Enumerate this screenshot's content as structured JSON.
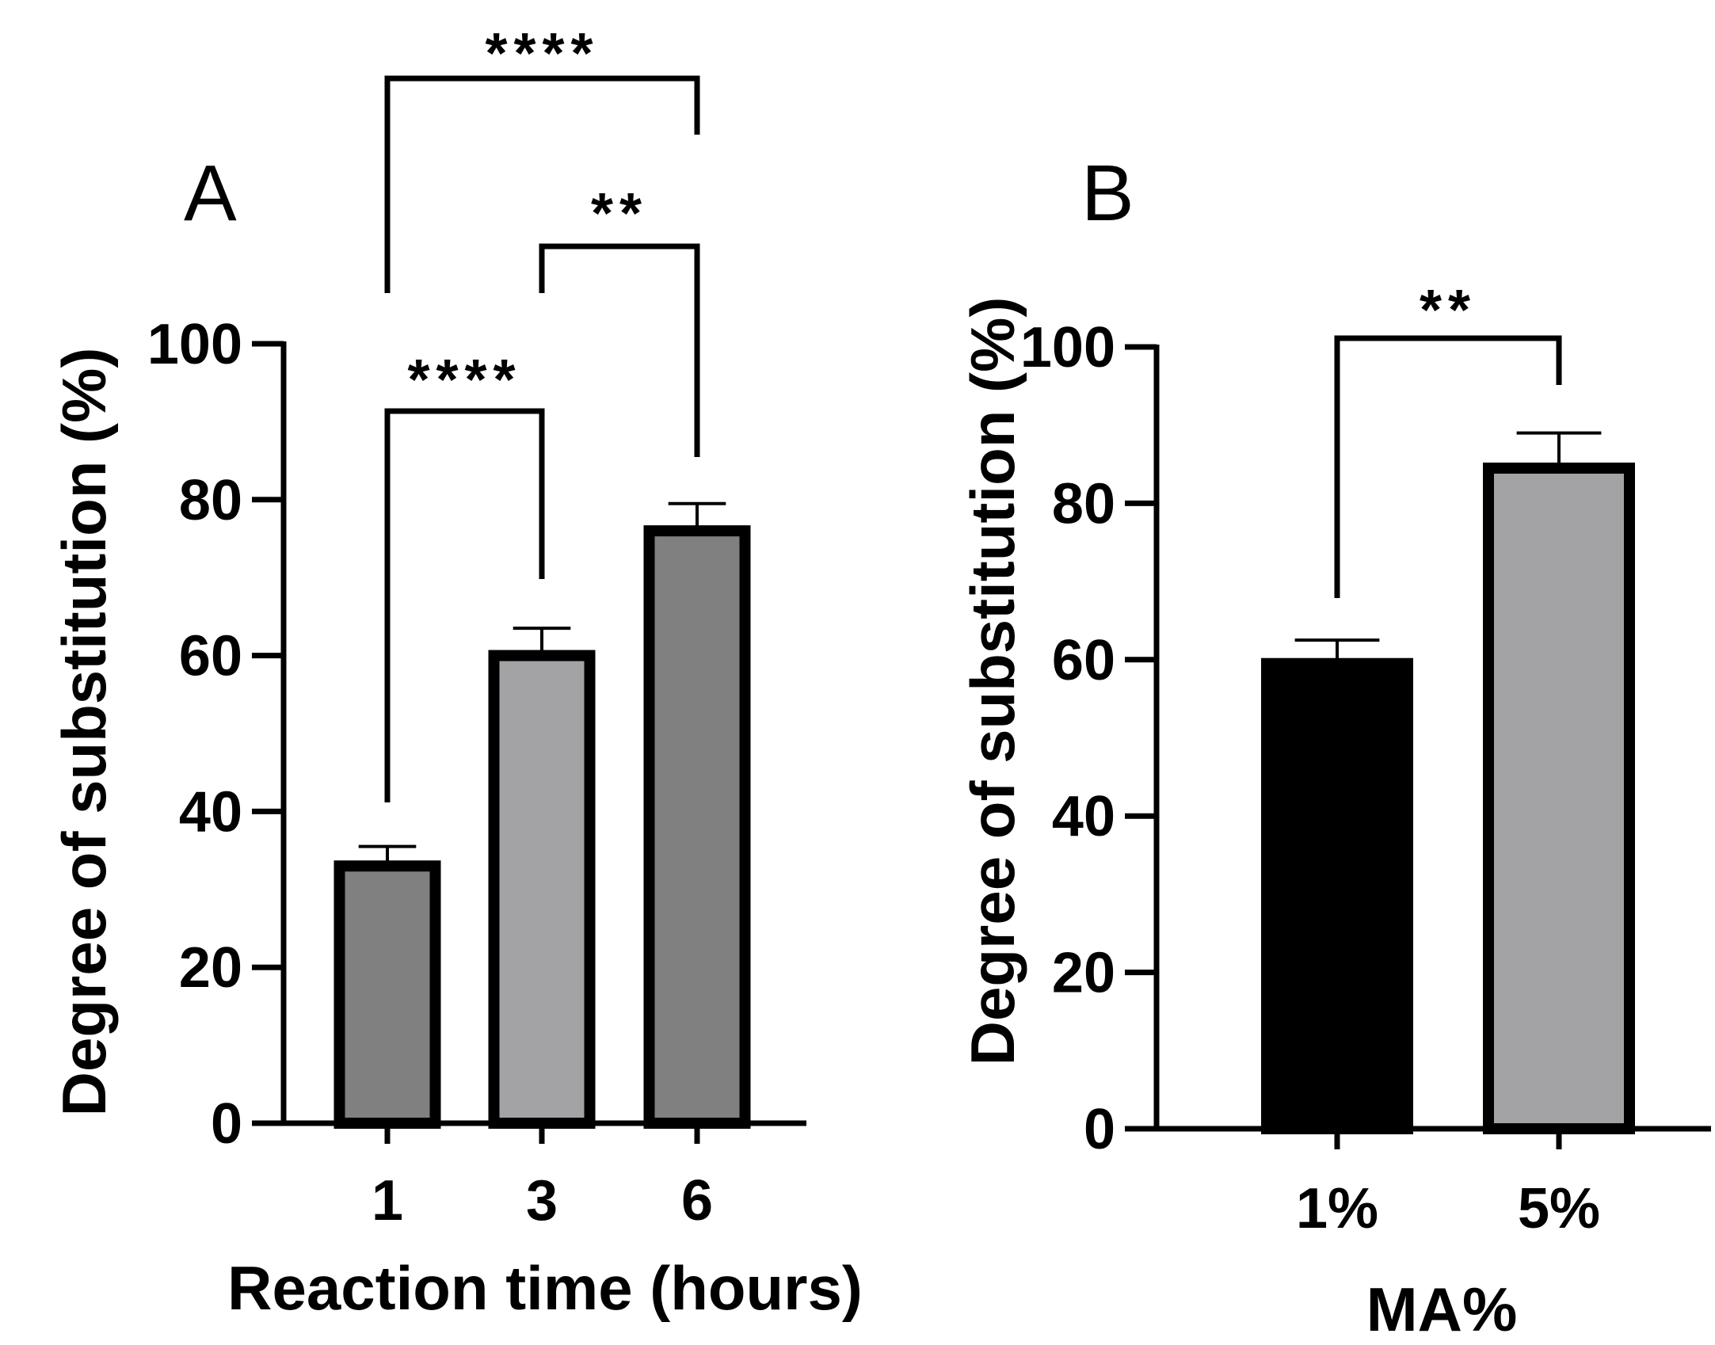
{
  "chart_data": [
    {
      "panel": "A",
      "type": "bar",
      "xlabel": "Reaction time (hours)",
      "ylabel": "Degree of substitution (%)",
      "ylim": [
        0,
        100
      ],
      "yticks": [
        0,
        20,
        40,
        60,
        80,
        100
      ],
      "categories": [
        "1",
        "3",
        "6"
      ],
      "values": [
        33,
        60,
        76
      ],
      "errors": [
        2.5,
        3.5,
        3.5
      ],
      "bar_colors": [
        "#808080",
        "#a3a3a6",
        "#808080"
      ],
      "significance": [
        {
          "from": 0,
          "to": 2,
          "label": "****"
        },
        {
          "from": 1,
          "to": 2,
          "label": "**"
        },
        {
          "from": 0,
          "to": 1,
          "label": "****"
        }
      ]
    },
    {
      "panel": "B",
      "type": "bar",
      "xlabel": "MA%",
      "ylabel": "Degree of substitution (%)",
      "ylim": [
        0,
        100
      ],
      "yticks": [
        0,
        20,
        40,
        60,
        80,
        100
      ],
      "categories": [
        "1%",
        "5%"
      ],
      "values": [
        59.5,
        84.5
      ],
      "errors": [
        3,
        4.5
      ],
      "bar_colors": [
        "#000000",
        "#a3a3a6"
      ],
      "significance": [
        {
          "from": 0,
          "to": 1,
          "label": "**"
        }
      ]
    }
  ]
}
